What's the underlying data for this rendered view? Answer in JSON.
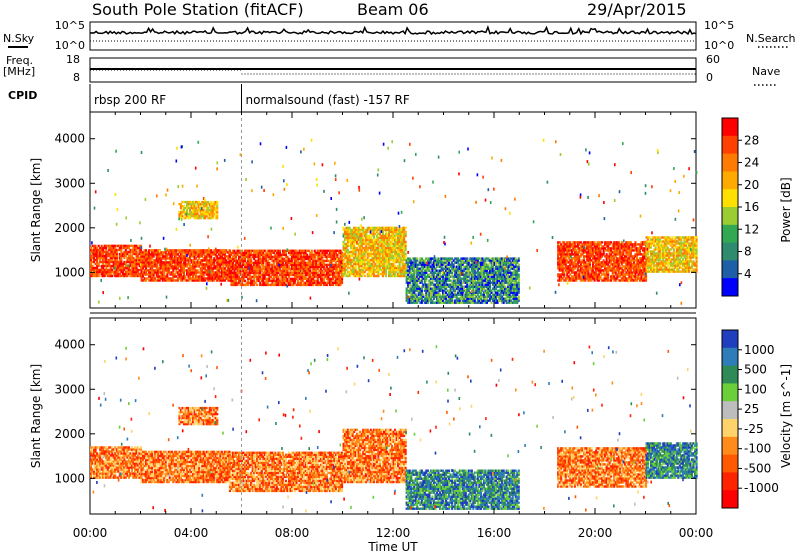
{
  "header": {
    "station": "South Pole Station (fitACF)",
    "beam": "Beam 06",
    "date": "29/Apr/2015"
  },
  "strips": {
    "nsky_label": "N.Sky",
    "nsearch_label": "N.Search",
    "nsky_ticks": [
      "10^5",
      "10^0"
    ],
    "nsearch_ticks": [
      "10^5",
      "10^0"
    ],
    "freq_label": "Freq.",
    "freq_unit": "[MHz]",
    "freq_ticks": [
      "18",
      "8"
    ],
    "nave_label": "Nave",
    "nave_ticks": [
      "60",
      "0"
    ],
    "cpid_label": "CPID",
    "cpid_modes": [
      {
        "name": "rbsp 200 RF",
        "start_hour": 0
      },
      {
        "name": "normalsound (fast) -157 RF",
        "start_hour": 6.0
      }
    ]
  },
  "chart_data": [
    {
      "type": "heatmap",
      "title": "",
      "xlabel": "",
      "ylabel": "Slant Range [km]",
      "x_unit": "hours UT",
      "xlim": [
        0,
        24
      ],
      "ylim": [
        200,
        4600
      ],
      "x_ticks": [
        "00:00",
        "04:00",
        "08:00",
        "12:00",
        "16:00",
        "20:00",
        "00:00"
      ],
      "y_ticks": [
        1000,
        2000,
        3000,
        4000
      ],
      "colorbar": {
        "label": "Power [dB]",
        "ticks": [
          "28",
          "24",
          "20",
          "16",
          "12",
          "8",
          "4"
        ],
        "colors": [
          "#ff0000",
          "#ff4000",
          "#ff7a00",
          "#ffaa00",
          "#ffe000",
          "#9acd32",
          "#32a852",
          "#2e8b6e",
          "#1e5fa8",
          "#0000ff"
        ]
      },
      "regions": [
        {
          "t0": 0.0,
          "t1": 2.0,
          "r0": 900,
          "r1": 1600,
          "level": "high"
        },
        {
          "t0": 2.0,
          "t1": 5.5,
          "r0": 800,
          "r1": 1500,
          "level": "high"
        },
        {
          "t0": 5.5,
          "t1": 10.0,
          "r0": 700,
          "r1": 1500,
          "level": "high"
        },
        {
          "t0": 10.0,
          "t1": 12.5,
          "r0": 900,
          "r1": 2000,
          "level": "mid"
        },
        {
          "t0": 12.5,
          "t1": 17.0,
          "r0": 300,
          "r1": 1300,
          "level": "low"
        },
        {
          "t0": 18.5,
          "t1": 22.0,
          "r0": 800,
          "r1": 1700,
          "level": "high"
        },
        {
          "t0": 22.0,
          "t1": 24.0,
          "r0": 1000,
          "r1": 1800,
          "level": "mid"
        },
        {
          "t0": 3.5,
          "t1": 5.0,
          "r0": 2200,
          "r1": 2600,
          "level": "mid"
        }
      ]
    },
    {
      "type": "heatmap",
      "title": "",
      "xlabel": "Time UT",
      "ylabel": "Slant Range [km]",
      "x_unit": "hours UT",
      "xlim": [
        0,
        24
      ],
      "ylim": [
        200,
        4600
      ],
      "x_ticks": [
        "00:00",
        "04:00",
        "08:00",
        "12:00",
        "16:00",
        "20:00",
        "00:00"
      ],
      "y_ticks": [
        1000,
        2000,
        3000,
        4000
      ],
      "colorbar": {
        "label": "Velocity [m s^-1]",
        "ticks": [
          "1000",
          "500",
          "100",
          "25",
          "-25",
          "-100",
          "-500",
          "-1000"
        ],
        "colors": [
          "#1f3fbf",
          "#2e7db8",
          "#2e8b57",
          "#6ccf3a",
          "#bdbdbd",
          "#ffd36b",
          "#ff8c1a",
          "#ff5a00",
          "#ff2400",
          "#ff0000"
        ]
      },
      "regions": [
        {
          "t0": 0.0,
          "t1": 2.0,
          "r0": 1000,
          "r1": 1700,
          "level": "neg"
        },
        {
          "t0": 2.0,
          "t1": 5.5,
          "r0": 900,
          "r1": 1600,
          "level": "neg"
        },
        {
          "t0": 5.5,
          "t1": 10.0,
          "r0": 700,
          "r1": 1600,
          "level": "neg"
        },
        {
          "t0": 10.0,
          "t1": 12.5,
          "r0": 900,
          "r1": 2100,
          "level": "neg"
        },
        {
          "t0": 12.5,
          "t1": 17.0,
          "r0": 300,
          "r1": 1200,
          "level": "pos"
        },
        {
          "t0": 18.5,
          "t1": 22.0,
          "r0": 800,
          "r1": 1700,
          "level": "neg"
        },
        {
          "t0": 22.0,
          "t1": 24.0,
          "r0": 1000,
          "r1": 1800,
          "level": "pos"
        },
        {
          "t0": 3.5,
          "t1": 5.0,
          "r0": 2200,
          "r1": 2600,
          "level": "neg"
        }
      ]
    }
  ]
}
